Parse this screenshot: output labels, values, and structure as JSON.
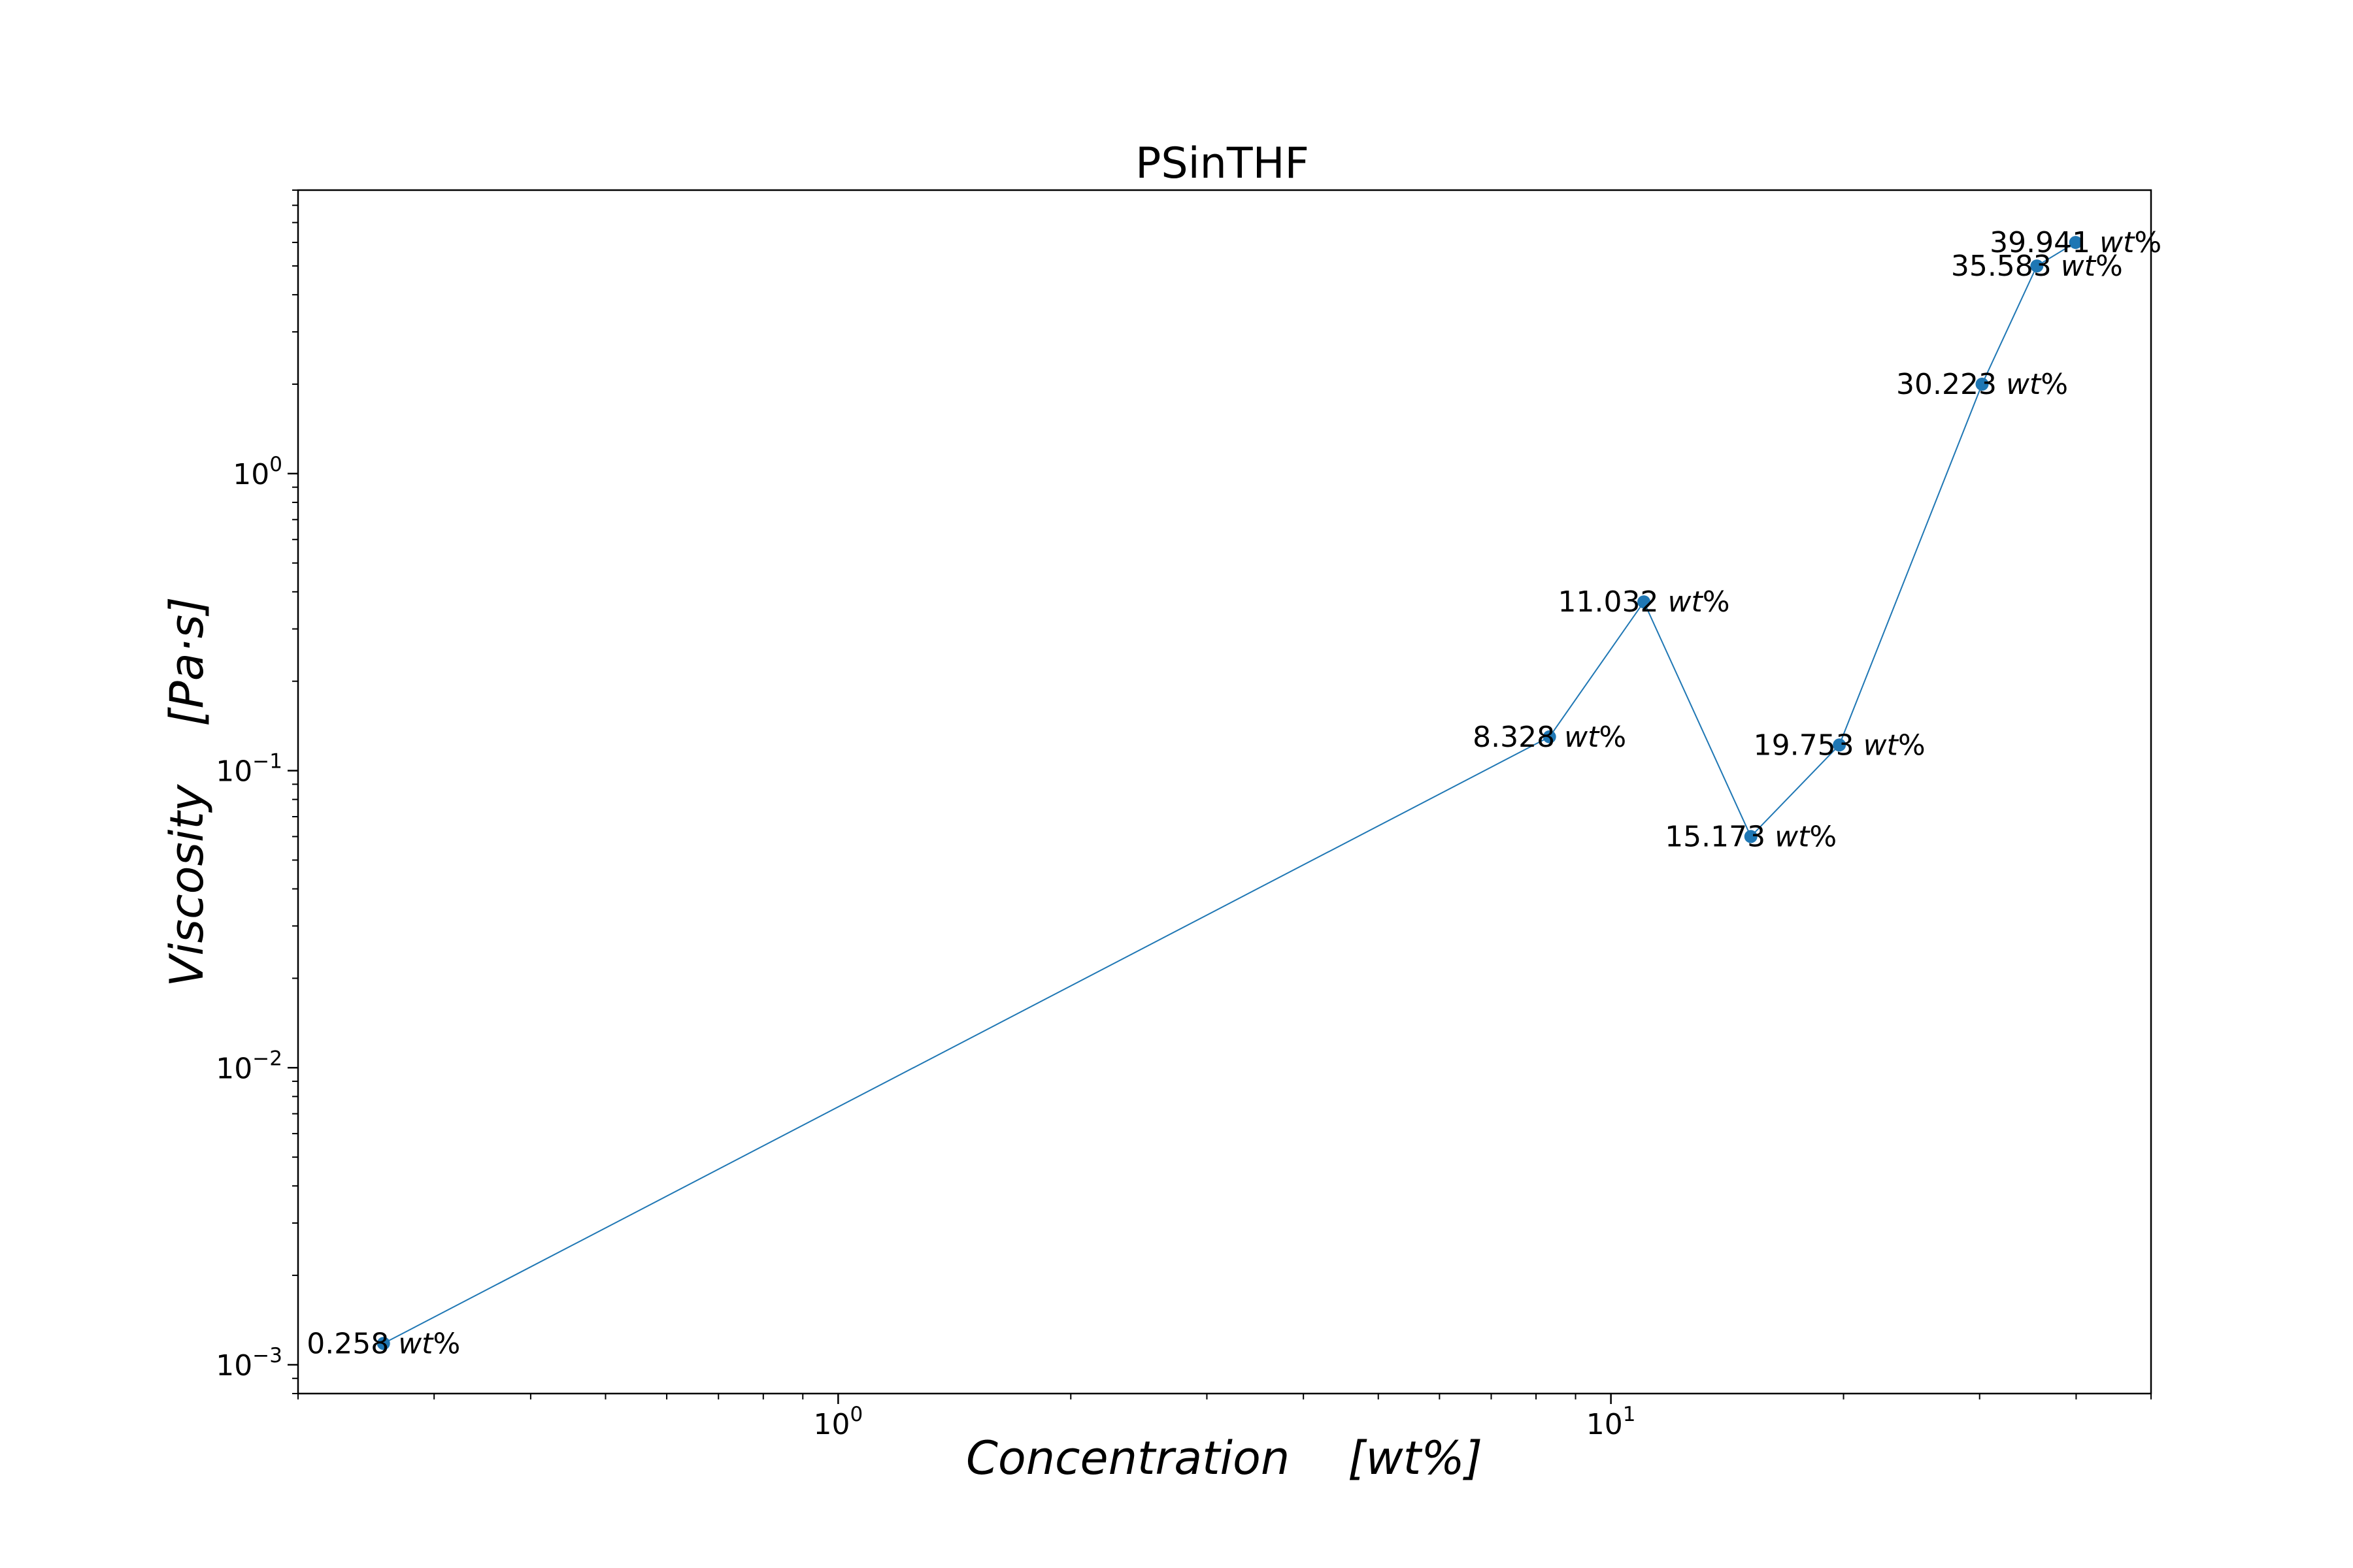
{
  "chart_data": {
    "type": "line",
    "title": "PSinTHF",
    "xlabel": "Concentration    [wt%]",
    "ylabel": "Viscosity    [Pa·s]",
    "x_scale": "log",
    "y_scale": "log",
    "xlim": [
      0.2,
      50
    ],
    "ylim": [
      0.0008,
      9
    ],
    "x_ticks": [
      {
        "base": "10",
        "exp": "0",
        "value": 1
      },
      {
        "base": "10",
        "exp": "1",
        "value": 10
      }
    ],
    "y_ticks": [
      {
        "base": "10",
        "exp": "−3",
        "value": 0.001
      },
      {
        "base": "10",
        "exp": "−2",
        "value": 0.01
      },
      {
        "base": "10",
        "exp": "−1",
        "value": 0.1
      },
      {
        "base": "10",
        "exp": "0",
        "value": 1
      }
    ],
    "grid": false,
    "line_color": "#1f77b4",
    "marker_color": "#1f77b4",
    "series": [
      {
        "x": [
          0.258,
          8.328,
          11.032,
          15.173,
          19.753,
          30.223,
          35.583,
          39.941
        ],
        "y": [
          0.00118,
          0.13,
          0.37,
          0.06,
          0.122,
          2.0,
          5.0,
          6.0
        ],
        "labels": [
          "0.258",
          "8.328",
          "11.032",
          "15.173",
          "19.753",
          "30.223",
          "35.583",
          "39.941"
        ]
      }
    ],
    "label_unit": "wt%"
  }
}
